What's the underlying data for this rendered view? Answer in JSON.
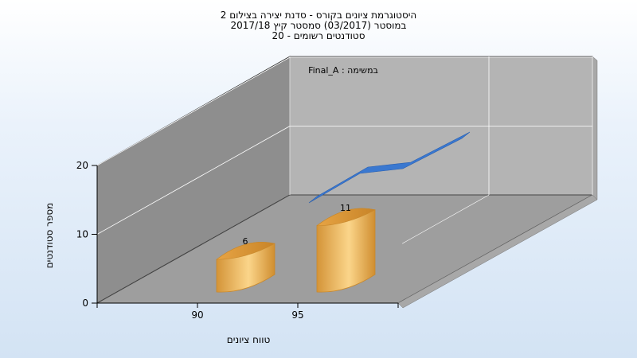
{
  "chart_data": {
    "type": "bar",
    "title_lines": [
      "היסטוגרמת ציונים בקורס - סדנת יצירה בצילום 2",
      "במוסטר  (03/2017)  סמסטר קיץ 2017/18",
      "סטודנטים רשומים - 20"
    ],
    "categories": [
      "90",
      "95"
    ],
    "series": [
      {
        "name": "במשימה : Final_A",
        "values": [
          6,
          11
        ]
      }
    ],
    "data_labels": [
      "6",
      "11"
    ],
    "xlabel": "טווח ציונים",
    "ylabel": "מספר סטודנטים",
    "yticks": [
      "0",
      "10",
      "20"
    ],
    "ylim": [
      0,
      20
    ],
    "grid": true,
    "legend_position": "top-left",
    "colors": {
      "bar": "#e8a848",
      "bar_highlight": "#fbd58a",
      "bar_shadow": "#c8882c",
      "line": "#3a78d0",
      "back_wall": "#b4b4b4",
      "side_wall": "#8e8e8e",
      "floor": "#9e9e9e"
    }
  }
}
